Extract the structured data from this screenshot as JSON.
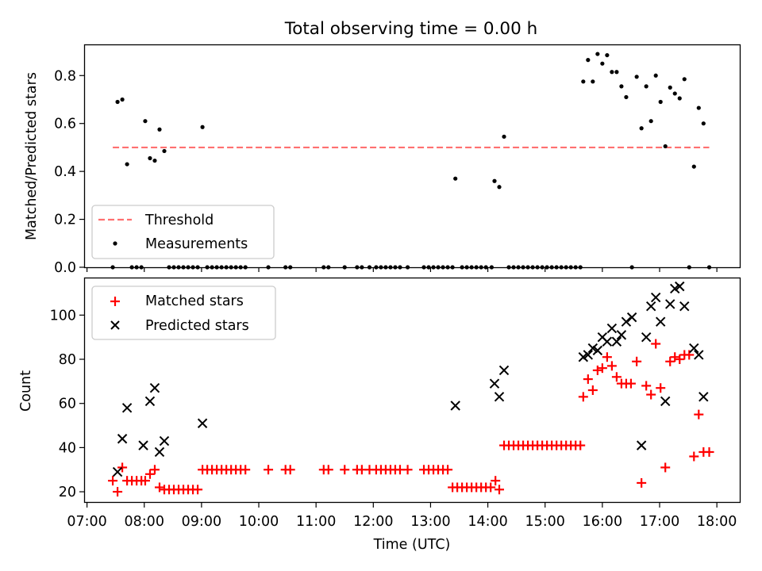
{
  "title": "Total observing time = 0.00 h",
  "xlabel": "Time (UTC)",
  "colors": {
    "threshold": "#ff7070",
    "measurements": "#000000",
    "matched": "#ff0000",
    "predicted": "#000000"
  },
  "chart_data": [
    {
      "type": "scatter",
      "ylabel": "Matched/Predicted stars",
      "ylim": [
        0,
        0.93
      ],
      "xlim": [
        "06:57",
        "18:24"
      ],
      "yticks": [
        "0.0",
        "0.2",
        "0.4",
        "0.6",
        "0.8"
      ],
      "ytick_values": [
        0,
        0.2,
        0.4,
        0.6,
        0.8
      ],
      "legend_position": "lower-left",
      "grid": false,
      "threshold": {
        "label": "Threshold",
        "value": 0.5,
        "x_range": [
          "07:27",
          "17:52"
        ],
        "style": "dashed"
      },
      "series": [
        {
          "name": "Measurements",
          "marker": "dot",
          "points": [
            [
              "07:27",
              0
            ],
            [
              "07:32",
              0.69
            ],
            [
              "07:37",
              0.7
            ],
            [
              "07:42",
              0.43
            ],
            [
              "07:47",
              0
            ],
            [
              "07:52",
              0
            ],
            [
              "07:57",
              0
            ],
            [
              "08:01",
              0.61
            ],
            [
              "08:06",
              0.455
            ],
            [
              "08:11",
              0.445
            ],
            [
              "08:16",
              0.575
            ],
            [
              "08:21",
              0.485
            ],
            [
              "08:26",
              0
            ],
            [
              "08:31",
              0
            ],
            [
              "08:36",
              0
            ],
            [
              "08:41",
              0
            ],
            [
              "08:46",
              0
            ],
            [
              "08:51",
              0
            ],
            [
              "08:56",
              0
            ],
            [
              "09:01",
              0.585
            ],
            [
              "09:06",
              0
            ],
            [
              "09:11",
              0
            ],
            [
              "09:16",
              0
            ],
            [
              "09:21",
              0
            ],
            [
              "09:26",
              0
            ],
            [
              "09:31",
              0
            ],
            [
              "09:36",
              0
            ],
            [
              "09:41",
              0
            ],
            [
              "09:46",
              0
            ],
            [
              "10:10",
              0
            ],
            [
              "10:28",
              0
            ],
            [
              "10:33",
              0
            ],
            [
              "11:08",
              0
            ],
            [
              "11:13",
              0
            ],
            [
              "11:30",
              0
            ],
            [
              "11:43",
              0
            ],
            [
              "11:48",
              0
            ],
            [
              "11:56",
              0
            ],
            [
              "12:03",
              0
            ],
            [
              "12:08",
              0
            ],
            [
              "12:13",
              0
            ],
            [
              "12:18",
              0
            ],
            [
              "12:23",
              0
            ],
            [
              "12:28",
              0
            ],
            [
              "12:36",
              0
            ],
            [
              "12:53",
              0
            ],
            [
              "12:58",
              0
            ],
            [
              "13:03",
              0
            ],
            [
              "13:08",
              0
            ],
            [
              "13:13",
              0
            ],
            [
              "13:18",
              0
            ],
            [
              "13:23",
              0
            ],
            [
              "13:26",
              0.37
            ],
            [
              "13:33",
              0
            ],
            [
              "13:38",
              0
            ],
            [
              "13:43",
              0
            ],
            [
              "13:48",
              0
            ],
            [
              "13:53",
              0
            ],
            [
              "13:58",
              0
            ],
            [
              "14:04",
              0
            ],
            [
              "14:07",
              0.36
            ],
            [
              "14:12",
              0.335
            ],
            [
              "14:17",
              0.545
            ],
            [
              "14:22",
              0
            ],
            [
              "14:27",
              0
            ],
            [
              "14:32",
              0
            ],
            [
              "14:37",
              0
            ],
            [
              "14:42",
              0
            ],
            [
              "14:47",
              0
            ],
            [
              "14:52",
              0
            ],
            [
              "14:57",
              0
            ],
            [
              "15:02",
              0
            ],
            [
              "15:07",
              0
            ],
            [
              "15:12",
              0
            ],
            [
              "15:17",
              0
            ],
            [
              "15:22",
              0
            ],
            [
              "15:27",
              0
            ],
            [
              "15:32",
              0
            ],
            [
              "15:37",
              0
            ],
            [
              "15:40",
              0.775
            ],
            [
              "15:45",
              0.865
            ],
            [
              "15:50",
              0.775
            ],
            [
              "15:55",
              0.89
            ],
            [
              "16:00",
              0.85
            ],
            [
              "16:05",
              0.885
            ],
            [
              "16:10",
              0.815
            ],
            [
              "16:15",
              0.815
            ],
            [
              "16:20",
              0.755
            ],
            [
              "16:25",
              0.71
            ],
            [
              "16:31",
              0
            ],
            [
              "16:36",
              0.795
            ],
            [
              "16:41",
              0.58
            ],
            [
              "16:46",
              0.755
            ],
            [
              "16:51",
              0.61
            ],
            [
              "16:56",
              0.8
            ],
            [
              "17:01",
              0.69
            ],
            [
              "17:06",
              0.505
            ],
            [
              "17:11",
              0.75
            ],
            [
              "17:16",
              0.725
            ],
            [
              "17:21",
              0.705
            ],
            [
              "17:26",
              0.785
            ],
            [
              "17:31",
              0
            ],
            [
              "17:36",
              0.42
            ],
            [
              "17:41",
              0.665
            ],
            [
              "17:46",
              0.6
            ],
            [
              "17:52",
              0
            ]
          ]
        }
      ]
    },
    {
      "type": "scatter",
      "ylabel": "Count",
      "ylim": [
        15,
        117
      ],
      "xlim": [
        "06:57",
        "18:24"
      ],
      "yticks": [
        "20",
        "40",
        "60",
        "80",
        "100"
      ],
      "ytick_values": [
        20,
        40,
        60,
        80,
        100
      ],
      "legend_position": "upper-left",
      "grid": false,
      "series": [
        {
          "name": "Matched stars",
          "marker": "plus",
          "points": [
            [
              "07:27",
              25
            ],
            [
              "07:32",
              20
            ],
            [
              "07:37",
              31
            ],
            [
              "07:42",
              25
            ],
            [
              "07:47",
              25
            ],
            [
              "07:52",
              25
            ],
            [
              "07:57",
              25
            ],
            [
              "08:01",
              25
            ],
            [
              "08:06",
              28
            ],
            [
              "08:11",
              30
            ],
            [
              "08:16",
              22
            ],
            [
              "08:21",
              21
            ],
            [
              "08:26",
              21
            ],
            [
              "08:31",
              21
            ],
            [
              "08:36",
              21
            ],
            [
              "08:41",
              21
            ],
            [
              "08:46",
              21
            ],
            [
              "08:51",
              21
            ],
            [
              "08:56",
              21
            ],
            [
              "09:01",
              30
            ],
            [
              "09:06",
              30
            ],
            [
              "09:11",
              30
            ],
            [
              "09:16",
              30
            ],
            [
              "09:21",
              30
            ],
            [
              "09:26",
              30
            ],
            [
              "09:31",
              30
            ],
            [
              "09:36",
              30
            ],
            [
              "09:41",
              30
            ],
            [
              "09:46",
              30
            ],
            [
              "10:10",
              30
            ],
            [
              "10:28",
              30
            ],
            [
              "10:33",
              30
            ],
            [
              "11:08",
              30
            ],
            [
              "11:13",
              30
            ],
            [
              "11:30",
              30
            ],
            [
              "11:43",
              30
            ],
            [
              "11:48",
              30
            ],
            [
              "11:56",
              30
            ],
            [
              "12:03",
              30
            ],
            [
              "12:08",
              30
            ],
            [
              "12:13",
              30
            ],
            [
              "12:18",
              30
            ],
            [
              "12:23",
              30
            ],
            [
              "12:28",
              30
            ],
            [
              "12:36",
              30
            ],
            [
              "12:53",
              30
            ],
            [
              "12:58",
              30
            ],
            [
              "13:03",
              30
            ],
            [
              "13:08",
              30
            ],
            [
              "13:13",
              30
            ],
            [
              "13:18",
              30
            ],
            [
              "13:23",
              22
            ],
            [
              "13:28",
              22
            ],
            [
              "13:33",
              22
            ],
            [
              "13:38",
              22
            ],
            [
              "13:43",
              22
            ],
            [
              "13:48",
              22
            ],
            [
              "13:53",
              22
            ],
            [
              "13:58",
              22
            ],
            [
              "14:03",
              22
            ],
            [
              "14:08",
              25
            ],
            [
              "14:12",
              21
            ],
            [
              "14:17",
              41
            ],
            [
              "14:22",
              41
            ],
            [
              "14:27",
              41
            ],
            [
              "14:32",
              41
            ],
            [
              "14:37",
              41
            ],
            [
              "14:42",
              41
            ],
            [
              "14:47",
              41
            ],
            [
              "14:52",
              41
            ],
            [
              "14:57",
              41
            ],
            [
              "15:02",
              41
            ],
            [
              "15:07",
              41
            ],
            [
              "15:12",
              41
            ],
            [
              "15:17",
              41
            ],
            [
              "15:22",
              41
            ],
            [
              "15:27",
              41
            ],
            [
              "15:32",
              41
            ],
            [
              "15:37",
              41
            ],
            [
              "15:40",
              63
            ],
            [
              "15:45",
              71
            ],
            [
              "15:50",
              66
            ],
            [
              "15:55",
              75
            ],
            [
              "16:00",
              76
            ],
            [
              "16:05",
              81
            ],
            [
              "16:10",
              77
            ],
            [
              "16:15",
              72
            ],
            [
              "16:20",
              69
            ],
            [
              "16:25",
              69
            ],
            [
              "16:30",
              69
            ],
            [
              "16:36",
              79
            ],
            [
              "16:41",
              24
            ],
            [
              "16:46",
              68
            ],
            [
              "16:51",
              64
            ],
            [
              "16:56",
              87
            ],
            [
              "17:01",
              67
            ],
            [
              "17:06",
              31
            ],
            [
              "17:11",
              79
            ],
            [
              "17:16",
              81
            ],
            [
              "17:21",
              80
            ],
            [
              "17:26",
              82
            ],
            [
              "17:31",
              82
            ],
            [
              "17:36",
              36
            ],
            [
              "17:41",
              55
            ],
            [
              "17:46",
              38
            ],
            [
              "17:52",
              38
            ]
          ]
        },
        {
          "name": "Predicted stars",
          "marker": "x",
          "points": [
            [
              "07:32",
              29
            ],
            [
              "07:37",
              44
            ],
            [
              "07:42",
              58
            ],
            [
              "07:59",
              41
            ],
            [
              "08:06",
              61
            ],
            [
              "08:11",
              67
            ],
            [
              "08:16",
              38
            ],
            [
              "08:21",
              43
            ],
            [
              "09:01",
              51
            ],
            [
              "13:26",
              59
            ],
            [
              "14:07",
              69
            ],
            [
              "14:12",
              63
            ],
            [
              "14:17",
              75
            ],
            [
              "15:40",
              81
            ],
            [
              "15:45",
              82
            ],
            [
              "15:50",
              85
            ],
            [
              "15:55",
              84
            ],
            [
              "16:00",
              90
            ],
            [
              "16:05",
              88
            ],
            [
              "16:10",
              94
            ],
            [
              "16:15",
              88
            ],
            [
              "16:20",
              91
            ],
            [
              "16:25",
              97
            ],
            [
              "16:31",
              99
            ],
            [
              "16:41",
              41
            ],
            [
              "16:46",
              90
            ],
            [
              "16:51",
              104
            ],
            [
              "16:56",
              108
            ],
            [
              "17:01",
              97
            ],
            [
              "17:06",
              61
            ],
            [
              "17:11",
              105
            ],
            [
              "17:16",
              112
            ],
            [
              "17:21",
              113
            ],
            [
              "17:26",
              104
            ],
            [
              "17:36",
              85
            ],
            [
              "17:41",
              82
            ],
            [
              "17:46",
              63
            ]
          ]
        }
      ]
    }
  ],
  "xticks": [
    "07:00",
    "08:00",
    "09:00",
    "10:00",
    "11:00",
    "12:00",
    "13:00",
    "14:00",
    "15:00",
    "16:00",
    "17:00",
    "18:00"
  ]
}
